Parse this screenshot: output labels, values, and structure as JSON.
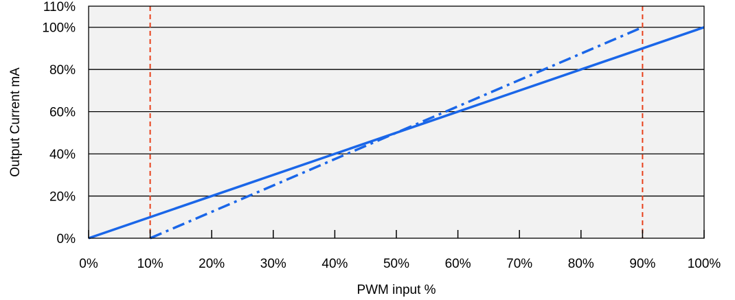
{
  "chart_data": {
    "type": "line",
    "title": "",
    "xlabel": "PWM input %",
    "ylabel": "Output Current mA",
    "xlim": [
      0,
      100
    ],
    "ylim": [
      0,
      110
    ],
    "x_ticks": [
      0,
      10,
      20,
      30,
      40,
      50,
      60,
      70,
      80,
      90,
      100
    ],
    "x_tick_labels": [
      "0%",
      "10%",
      "20%",
      "30%",
      "40%",
      "50%",
      "60%",
      "70%",
      "80%",
      "90%",
      "100%"
    ],
    "y_ticks": [
      0,
      20,
      40,
      60,
      80,
      100,
      110
    ],
    "y_tick_labels": [
      "0%",
      "20%",
      "40%",
      "60%",
      "80%",
      "100%",
      "110%"
    ],
    "grid": "horizontal",
    "series": [
      {
        "style": "solid",
        "color": "#1a66e8",
        "x": [
          0,
          100
        ],
        "y": [
          0,
          100
        ]
      },
      {
        "style": "dash-dot",
        "color": "#1a66e8",
        "x": [
          10,
          90
        ],
        "y": [
          0,
          100
        ]
      }
    ],
    "reference_lines": [
      {
        "axis": "x",
        "value": 10,
        "style": "dashed",
        "color": "#e8401a"
      },
      {
        "axis": "x",
        "value": 90,
        "style": "dashed",
        "color": "#e8401a"
      }
    ],
    "plot_background": "#f2f2f2"
  }
}
